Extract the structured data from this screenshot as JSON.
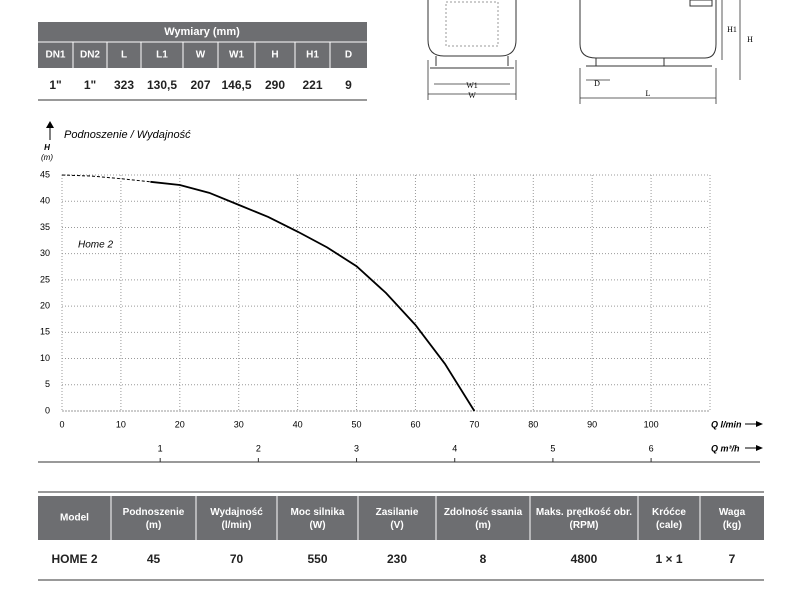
{
  "dimensions": {
    "title": "Wymiary (mm)",
    "headers": [
      "DN1",
      "DN2",
      "L",
      "L1",
      "W",
      "W1",
      "H",
      "H1",
      "D"
    ],
    "row": [
      "1\"",
      "1\"",
      "323",
      "130,5",
      "207",
      "146,5",
      "290",
      "221",
      "9"
    ]
  },
  "drawing_labels": {
    "front": [
      "W1",
      "W"
    ],
    "side": [
      "D",
      "L",
      "H1",
      "H"
    ]
  },
  "chart_data": {
    "type": "line",
    "title": "Podnoszenie / Wydajność",
    "y_label": "H",
    "y_unit": "(m)",
    "x_label": "Q l/min",
    "x2_label": "Q m³/h",
    "xlim": [
      0,
      110
    ],
    "xticks": [
      0,
      10,
      20,
      30,
      40,
      50,
      60,
      70,
      80,
      90,
      100
    ],
    "x2lim": [
      0,
      6.6
    ],
    "x2ticks": [
      1,
      2,
      3,
      4,
      5,
      6
    ],
    "ylim": [
      0,
      45
    ],
    "yticks": [
      0,
      5,
      10,
      15,
      20,
      25,
      30,
      35,
      40,
      45
    ],
    "grid": true,
    "series": [
      {
        "style": "dashed",
        "color": "#000000",
        "x": [
          0,
          5,
          10,
          15
        ],
        "values": [
          45,
          44.8,
          44.3,
          43.7
        ]
      },
      {
        "name": "Home 2",
        "style": "solid",
        "color": "#000000",
        "x": [
          15,
          20,
          25,
          30,
          35,
          40,
          45,
          50,
          55,
          60,
          65,
          70
        ],
        "values": [
          43.7,
          43.1,
          41.6,
          39.3,
          37.0,
          34.2,
          31.2,
          27.6,
          22.5,
          16.4,
          9.0,
          0
        ]
      }
    ]
  },
  "specs": {
    "headers": [
      "Model",
      "Podnoszenie\n(m)",
      "Wydajność\n(l/min)",
      "Moc silnika\n(W)",
      "Zasilanie\n(V)",
      "Zdolność ssania\n(m)",
      "Maks. prędkość obr.\n(RPM)",
      "Króćce\n(cale)",
      "Waga\n(kg)"
    ],
    "row": [
      "HOME 2",
      "45",
      "70",
      "550",
      "230",
      "8",
      "4800",
      "1 × 1",
      "7"
    ]
  }
}
